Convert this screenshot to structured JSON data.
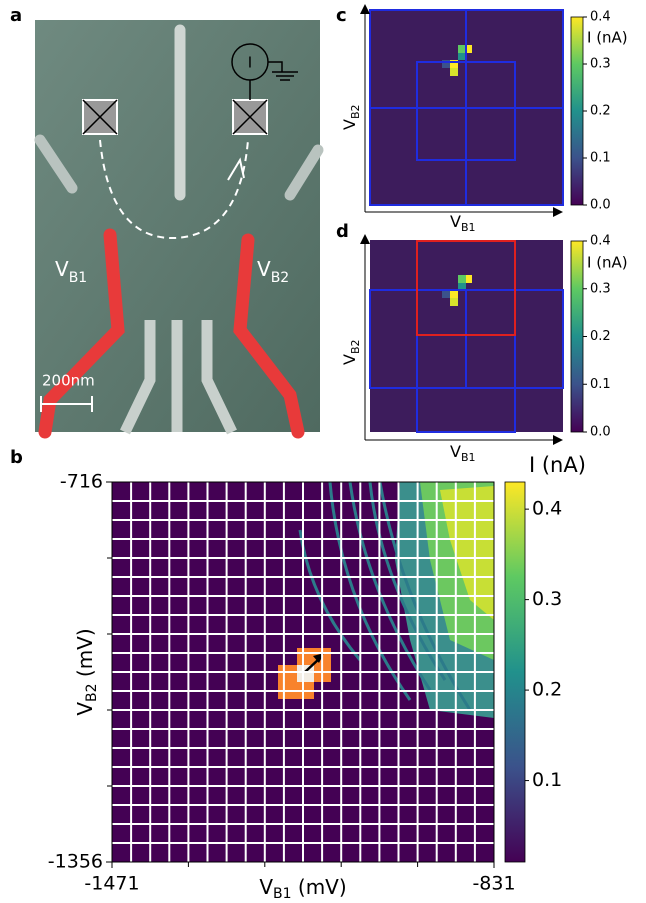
{
  "panels": {
    "a": {
      "label": "a",
      "gate_left": {
        "main": "V",
        "sub": "B1"
      },
      "gate_right": {
        "main": "V",
        "sub": "B2"
      },
      "scale_bar": "200nm",
      "meter": "I"
    },
    "b": {
      "label": "b",
      "x_axis": {
        "main": "V",
        "sub": "B1",
        "unit": " (mV)"
      },
      "y_axis": {
        "main": "V",
        "sub": "B2",
        "unit": " (mV)"
      },
      "xlim": [
        -1471,
        -831
      ],
      "xticks": [
        -1471,
        -831
      ],
      "ylim": [
        -1356,
        -716
      ],
      "yticks": [
        -1356,
        -716
      ],
      "colorbar": {
        "title": "I (nA)",
        "clim": [
          0.01,
          0.43
        ],
        "ticks": [
          0.1,
          0.2,
          0.3,
          0.4
        ]
      }
    },
    "c": {
      "label": "c",
      "x_axis": {
        "main": "V",
        "sub": "B1"
      },
      "y_axis": {
        "main": "V",
        "sub": "B2"
      },
      "colorbar": {
        "title": "I (nA)",
        "clim": [
          0,
          0.4
        ],
        "ticks": [
          {
            "value": 0,
            "label": "0.0"
          },
          0.1,
          0.2,
          0.3,
          0.4
        ]
      }
    },
    "d": {
      "label": "d",
      "x_axis": {
        "main": "V",
        "sub": "B1"
      },
      "y_axis": {
        "main": "V",
        "sub": "B2"
      },
      "colorbar": {
        "title": "I (nA)",
        "clim": [
          0,
          0.4
        ],
        "ticks": [
          {
            "value": 0,
            "label": "0.0"
          },
          0.1,
          0.2,
          0.3,
          0.4
        ]
      }
    }
  }
}
